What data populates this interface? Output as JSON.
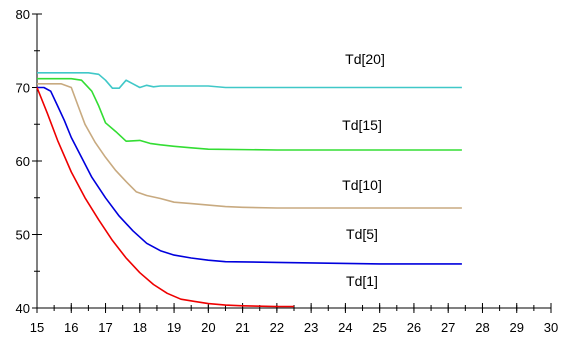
{
  "chart_data": {
    "type": "line",
    "xlim": [
      15,
      30
    ],
    "ylim": [
      40,
      80
    ],
    "x_ticks": [
      15,
      16,
      17,
      18,
      19,
      20,
      21,
      22,
      23,
      24,
      25,
      26,
      27,
      28,
      29,
      30
    ],
    "y_ticks": [
      40,
      50,
      60,
      70,
      80
    ],
    "x_minor_step": 0.5,
    "y_minor_step": 5,
    "grid": false,
    "legend": "inline labels",
    "series": [
      {
        "name": "Td[20]",
        "color": "#40c8c8",
        "x": [
          15,
          16,
          16.5,
          16.8,
          17,
          17.2,
          17.4,
          17.6,
          17.8,
          18,
          18.2,
          18.4,
          18.6,
          19,
          20,
          20.5,
          22,
          25,
          27.4
        ],
        "y": [
          72,
          72,
          72,
          71.8,
          71,
          69.9,
          69.9,
          71,
          70.5,
          70,
          70.3,
          70.1,
          70.2,
          70.2,
          70.2,
          70,
          70,
          70,
          70
        ]
      },
      {
        "name": "Td[15]",
        "color": "#33dd33",
        "x": [
          15,
          16,
          16.3,
          16.6,
          16.8,
          17,
          17.3,
          17.6,
          18,
          18.3,
          18.6,
          19,
          19.5,
          20,
          22,
          25,
          27.4
        ],
        "y": [
          71.2,
          71.2,
          71,
          69.5,
          67.5,
          65.2,
          64,
          62.7,
          62.8,
          62.4,
          62.2,
          62.0,
          61.8,
          61.6,
          61.5,
          61.5,
          61.5
        ]
      },
      {
        "name": "Td[10]",
        "color": "#c8aa80",
        "x": [
          15,
          15.7,
          16,
          16.2,
          16.4,
          16.7,
          17,
          17.3,
          17.6,
          17.9,
          18.2,
          18.6,
          19,
          19.5,
          20,
          20.5,
          21,
          22,
          25,
          27.4
        ],
        "y": [
          70.5,
          70.5,
          70,
          67.5,
          65,
          62.5,
          60.5,
          58.7,
          57.2,
          55.8,
          55.3,
          54.9,
          54.4,
          54.2,
          54.0,
          53.8,
          53.7,
          53.6,
          53.6,
          53.6
        ]
      },
      {
        "name": "Td[5]",
        "color": "#0000dd",
        "x": [
          15,
          15.2,
          15.4,
          15.6,
          15.8,
          16,
          16.3,
          16.6,
          17,
          17.4,
          17.8,
          18.2,
          18.6,
          19,
          19.5,
          20,
          20.5,
          22,
          25,
          27.4
        ],
        "y": [
          70,
          70,
          69.5,
          67.5,
          65.5,
          63.2,
          60.5,
          57.8,
          55,
          52.5,
          50.5,
          48.8,
          47.8,
          47.2,
          46.8,
          46.5,
          46.3,
          46.2,
          46.0,
          46.0
        ]
      },
      {
        "name": "Td[1]",
        "color": "#ee0000",
        "x": [
          15,
          15.3,
          15.6,
          16,
          16.4,
          16.8,
          17.2,
          17.6,
          18,
          18.4,
          18.8,
          19.2,
          19.6,
          20,
          20.5,
          21,
          22,
          22.5
        ],
        "y": [
          70,
          66.5,
          62.8,
          58.5,
          55,
          52,
          49.2,
          46.8,
          44.8,
          43.2,
          42,
          41.2,
          40.9,
          40.6,
          40.4,
          40.3,
          40.2,
          40.2
        ]
      }
    ]
  }
}
